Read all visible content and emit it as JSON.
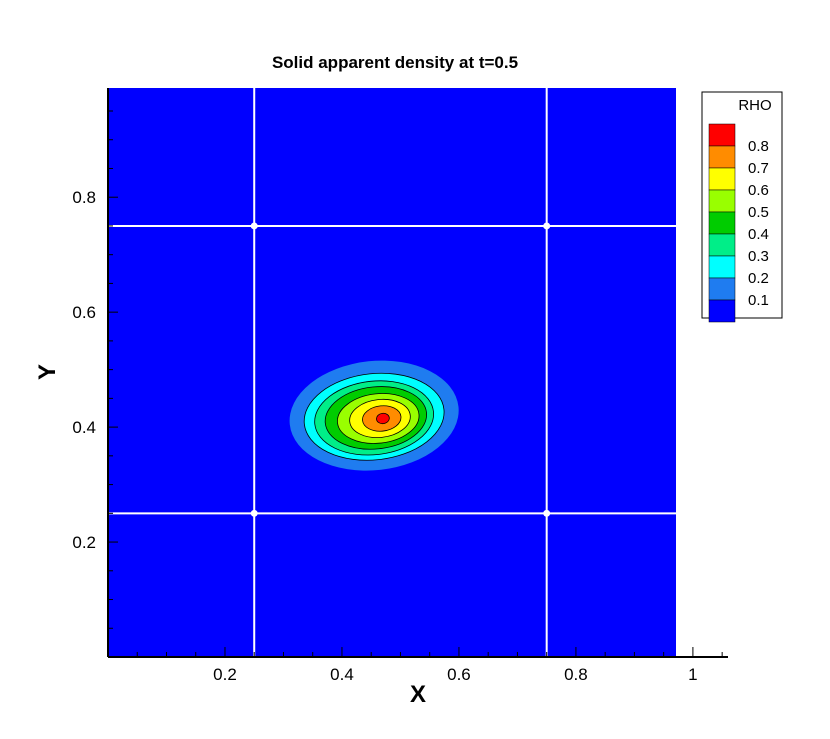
{
  "chart_data": {
    "type": "heatmap",
    "title": "Solid apparent density at t=0.5",
    "xlabel": "X",
    "ylabel": "Y",
    "xlim": [
      0,
      1.06
    ],
    "ylim": [
      0,
      0.99
    ],
    "x_ticks": [
      0.2,
      0.4,
      0.6,
      0.8,
      1
    ],
    "x_tick_labels": [
      "0.2",
      "0.4",
      "0.6",
      "0.8",
      "1"
    ],
    "y_ticks": [
      0.2,
      0.4,
      0.6,
      0.8
    ],
    "y_tick_labels": [
      "0.2",
      "0.4",
      "0.6",
      "0.8"
    ],
    "legend": {
      "title": "RHO",
      "placement": "top-right",
      "levels": [
        {
          "label": "0.8",
          "color": "#ff0000"
        },
        {
          "label": "0.7",
          "color": "#ff8c00"
        },
        {
          "label": "0.6",
          "color": "#ffff00"
        },
        {
          "label": "0.5",
          "color": "#99ff00"
        },
        {
          "label": "0.4",
          "color": "#00cc00"
        },
        {
          "label": "0.3",
          "color": "#00ee88"
        },
        {
          "label": "0.2",
          "color": "#00ffff"
        },
        {
          "label": "0.1",
          "color": "#1f7cf0"
        },
        {
          "label": "",
          "color": "#0000ff"
        }
      ]
    },
    "background_value_color": "#0000ff",
    "grid_lines_x": [
      0.25,
      0.75
    ],
    "grid_lines_y": [
      0.25,
      0.75
    ],
    "peak": {
      "x": 0.47,
      "y": 0.415,
      "value": 0.85
    },
    "contours": [
      {
        "level": 0.1,
        "color": "#1f7cf0",
        "cx": 0.455,
        "cy": 0.42,
        "rx": 0.145,
        "ry": 0.095
      },
      {
        "level": 0.2,
        "color": "#00ffff",
        "cx": 0.455,
        "cy": 0.418,
        "rx": 0.12,
        "ry": 0.075
      },
      {
        "level": 0.3,
        "color": "#00ee88",
        "cx": 0.455,
        "cy": 0.416,
        "rx": 0.102,
        "ry": 0.064
      },
      {
        "level": 0.4,
        "color": "#00cc00",
        "cx": 0.458,
        "cy": 0.416,
        "rx": 0.087,
        "ry": 0.054
      },
      {
        "level": 0.5,
        "color": "#99ff00",
        "cx": 0.462,
        "cy": 0.415,
        "rx": 0.07,
        "ry": 0.043
      },
      {
        "level": 0.6,
        "color": "#ffff00",
        "cx": 0.465,
        "cy": 0.415,
        "rx": 0.052,
        "ry": 0.033
      },
      {
        "level": 0.7,
        "color": "#ff8c00",
        "cx": 0.468,
        "cy": 0.415,
        "rx": 0.033,
        "ry": 0.022
      },
      {
        "level": 0.8,
        "color": "#ff0000",
        "cx": 0.47,
        "cy": 0.415,
        "rx": 0.011,
        "ry": 0.009
      }
    ]
  }
}
